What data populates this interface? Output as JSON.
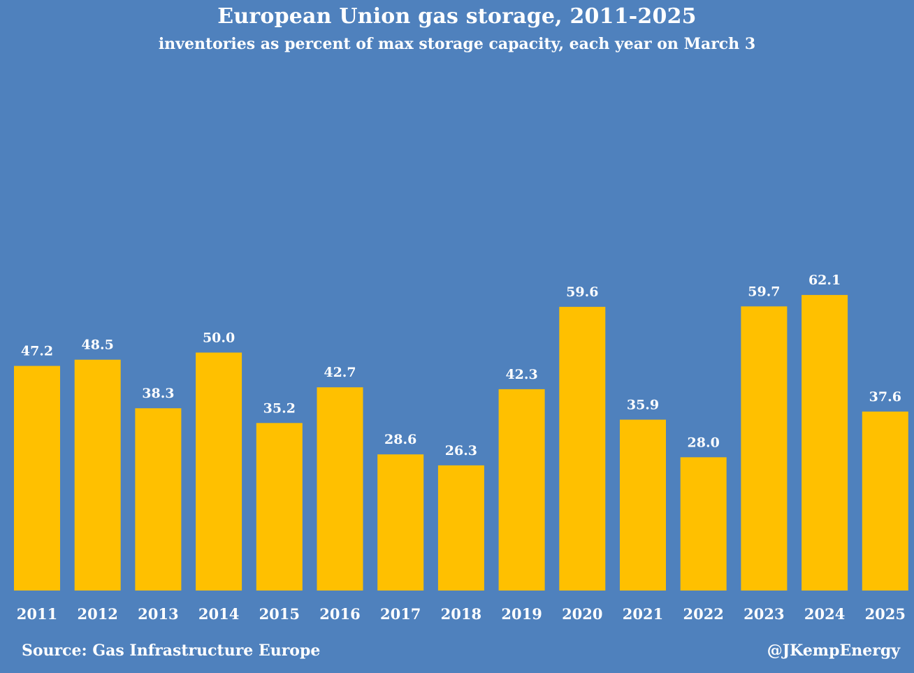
{
  "chart_data": {
    "type": "bar",
    "title": "European Union gas storage, 2011-2025",
    "subtitle": "inventories as percent of max storage capacity, each year on March 3",
    "categories": [
      "2011",
      "2012",
      "2013",
      "2014",
      "2015",
      "2016",
      "2017",
      "2018",
      "2019",
      "2020",
      "2021",
      "2022",
      "2023",
      "2024",
      "2025"
    ],
    "values": [
      47.2,
      48.5,
      38.3,
      50.0,
      35.2,
      42.7,
      28.6,
      26.3,
      42.3,
      59.6,
      35.9,
      28.0,
      59.7,
      62.1,
      37.6
    ],
    "value_labels": [
      "47.2",
      "48.5",
      "38.3",
      "50.0",
      "35.2",
      "42.7",
      "28.6",
      "26.3",
      "42.3",
      "59.6",
      "35.9",
      "28.0",
      "59.7",
      "62.1",
      "37.6"
    ],
    "ylim": [
      0,
      100
    ],
    "grid": false,
    "bar_color": "#ffc000",
    "background_color": "#4f81bd"
  },
  "footer": {
    "source": "Source: Gas Infrastructure Europe",
    "credit": "@JKempEnergy"
  }
}
